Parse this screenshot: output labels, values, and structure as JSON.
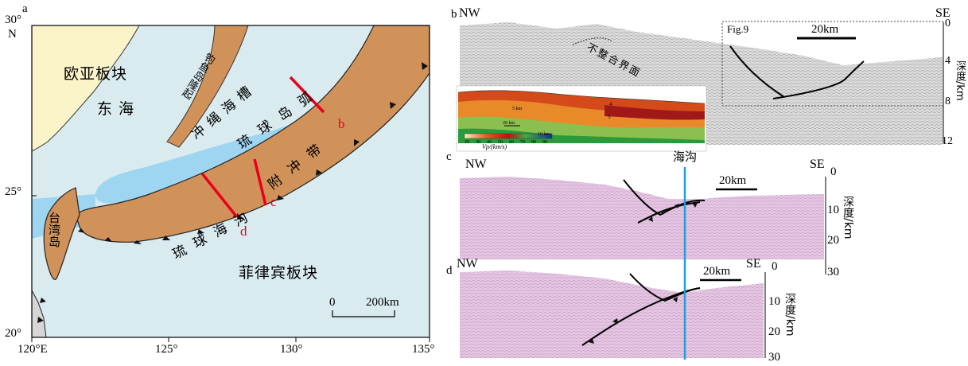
{
  "map": {
    "panel_letter": "a",
    "lat_labels": [
      "30°",
      "N",
      "25°",
      "20°"
    ],
    "lon_labels": [
      "120°E",
      "125°",
      "130°",
      "135°"
    ],
    "regions": {
      "eurasia_plate": "欧亚板块",
      "east_china_sea": "东海",
      "diaoyu_uplift": "钓鱼岛隆起",
      "okinawa_trough": "冲绳海槽",
      "ryukyu_arc": "琉球岛弧",
      "forearc_belt": "附冲带",
      "ryukyu_trench": "琉球海沟",
      "taiwan": "台湾岛",
      "philippine_plate": "菲律宾板块"
    },
    "profile_labels": [
      "b",
      "c",
      "d"
    ],
    "scale_zero": "0",
    "scale_length": "200km",
    "colors": {
      "land": "#fbf4c8",
      "sea": "#9ed6f2",
      "arc": "#d1925a",
      "ocean": "#d9ebef",
      "profile_line": "#e8001c"
    }
  },
  "profile_b": {
    "panel_letter": "b",
    "nw": "NW",
    "se": "SE",
    "unconformity": "不整合界面",
    "fig_ref": "Fig.9",
    "scale": "20km",
    "axis_title": "深度/km",
    "depth_ticks": [
      "0",
      "4",
      "8",
      "12"
    ],
    "inset_colorbar_ticks": [
      "20",
      "30",
      "40",
      "50",
      "60",
      "70",
      "80",
      "90"
    ],
    "inset_colorbar_title": "Vp/(km/s)",
    "inset_labels": [
      "5 km",
      "10 km",
      "20 km",
      "4",
      "5"
    ]
  },
  "trench_marker": "海沟",
  "profile_c": {
    "panel_letter": "c",
    "nw": "NW",
    "se": "SE",
    "scale": "20km",
    "axis_title": "深度/km",
    "depth_ticks": [
      "0",
      "10",
      "20",
      "30"
    ]
  },
  "profile_d": {
    "panel_letter": "d",
    "nw": "NW",
    "se": "SE",
    "scale": "20km",
    "axis_title": "深度/km",
    "depth_ticks": [
      "0",
      "10",
      "20",
      "30"
    ]
  }
}
